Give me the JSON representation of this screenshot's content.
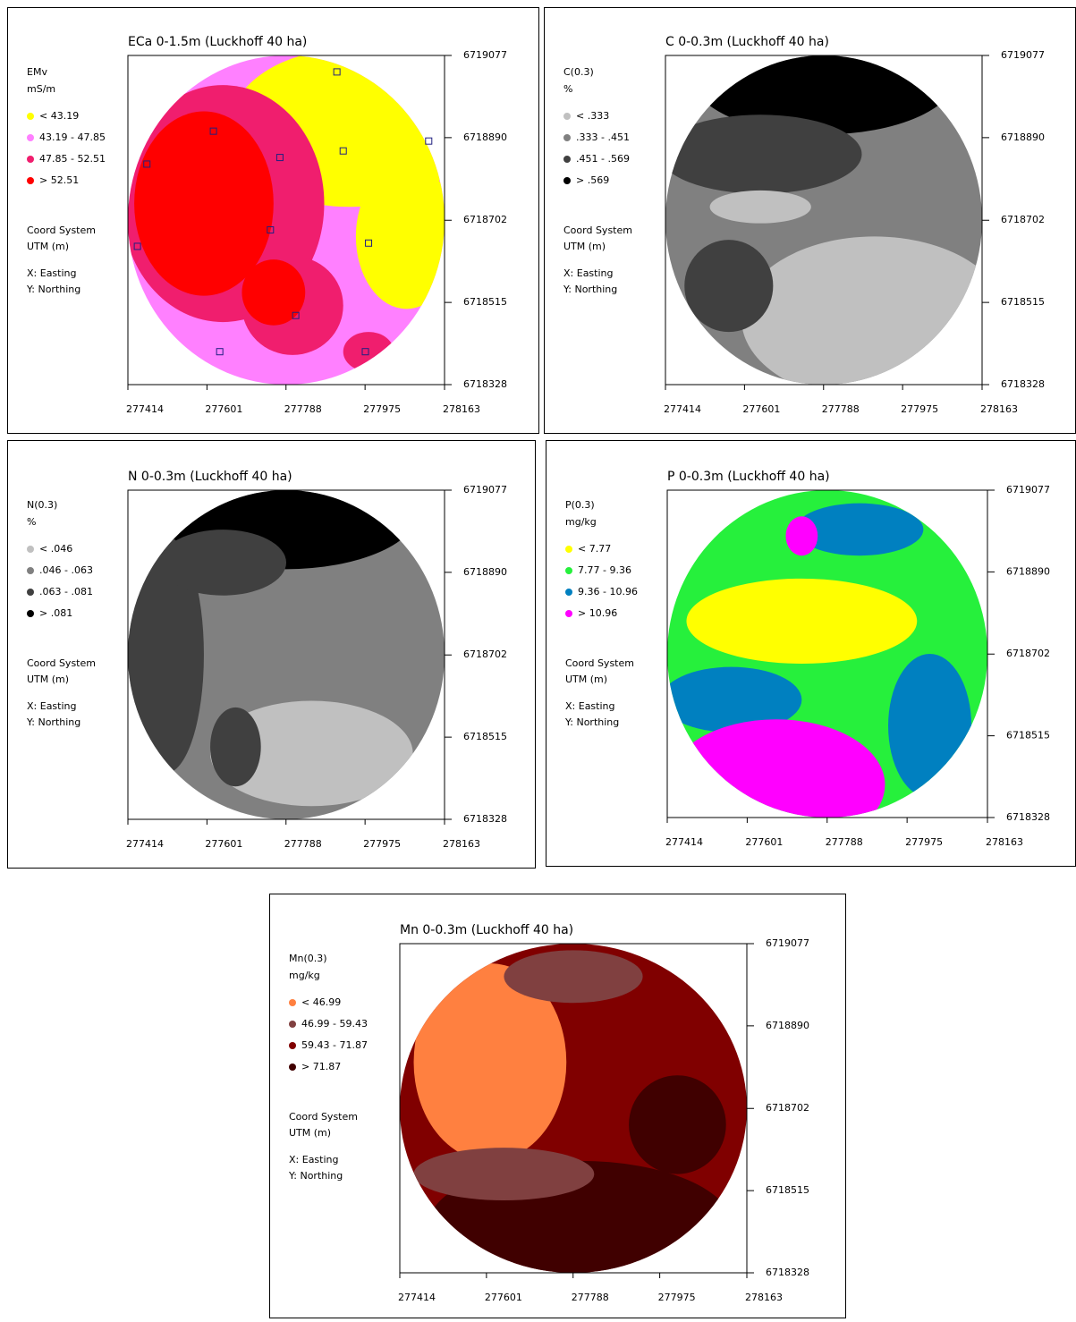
{
  "axes": {
    "xlim": [
      277414,
      278163
    ],
    "ylim": [
      6718328,
      6719077
    ],
    "xticks": [
      277414,
      277601,
      277788,
      277975,
      278163
    ],
    "yticks": [
      6718328,
      6718515,
      6718702,
      6718890,
      6719077
    ]
  },
  "coord": [
    "Coord System",
    "UTM (m)",
    "X: Easting",
    "Y: Northing"
  ],
  "panels": [
    {
      "title": "ECa 0-1.5m (Luckhoff 40 ha)",
      "legend_title": "EMv",
      "legend_unit": "mS/m",
      "legend": [
        {
          "label": "< 43.19",
          "color": "#ffff00"
        },
        {
          "label": "43.19 - 47.85",
          "color": "#ff80ff"
        },
        {
          "label": "47.85 - 52.51",
          "color": "#f01e6e"
        },
        {
          "label": "> 52.51",
          "color": "#ff0000"
        }
      ]
    },
    {
      "title": "C 0-0.3m (Luckhoff 40 ha)",
      "legend_title": "C(0.3)",
      "legend_unit": "%",
      "legend": [
        {
          "label": "< .333",
          "color": "#c0c0c0"
        },
        {
          "label": ".333 - .451",
          "color": "#808080"
        },
        {
          "label": ".451 - .569",
          "color": "#404040"
        },
        {
          "label": "> .569",
          "color": "#000000"
        }
      ]
    },
    {
      "title": "N 0-0.3m (Luckhoff 40 ha)",
      "legend_title": "N(0.3)",
      "legend_unit": "%",
      "legend": [
        {
          "label": "< .046",
          "color": "#c0c0c0"
        },
        {
          "label": ".046 - .063",
          "color": "#808080"
        },
        {
          "label": ".063 - .081",
          "color": "#404040"
        },
        {
          "label": "> .081",
          "color": "#000000"
        }
      ]
    },
    {
      "title": "P 0-0.3m (Luckhoff 40 ha)",
      "legend_title": "P(0.3)",
      "legend_unit": "mg/kg",
      "legend": [
        {
          "label": "< 7.77",
          "color": "#ffff00"
        },
        {
          "label": "7.77 - 9.36",
          "color": "#26f03c"
        },
        {
          "label": "9.36 - 10.96",
          "color": "#0080c0"
        },
        {
          "label": "> 10.96",
          "color": "#ff00ff"
        }
      ]
    },
    {
      "title": "Mn 0-0.3m (Luckhoff 40 ha)",
      "legend_title": "Mn(0.3)",
      "legend_unit": "mg/kg",
      "legend": [
        {
          "label": "< 46.99",
          "color": "#ff8040"
        },
        {
          "label": "46.99 - 59.43",
          "color": "#804040"
        },
        {
          "label": "59.43 - 71.87",
          "color": "#800000"
        },
        {
          "label": "> 71.87",
          "color": "#400000"
        }
      ]
    }
  ]
}
